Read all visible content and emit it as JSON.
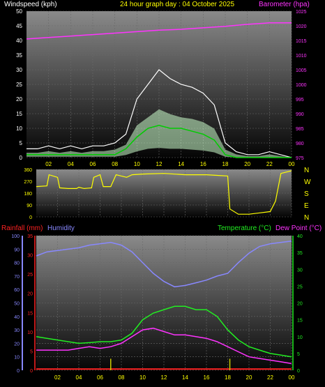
{
  "colors": {
    "background": "#000000",
    "wind_label": "#ffffff",
    "title": "#ffff00",
    "barometer": "#ff33ff",
    "gust": "#ffffff",
    "wind_avg": "#00cc00",
    "wind_range": "#ccffcc",
    "direction": "#ffff00",
    "rainfall": "#ff2222",
    "humidity": "#8888ff",
    "temperature": "#22ee22",
    "dewpoint": "#ff33ff",
    "rain_bar": "#cccc00",
    "time_label": "#ffff00"
  },
  "chart_data": [
    {
      "type": "line",
      "title": "24 hour graph day : 04 October 2025",
      "left_axis_label": "Windspeed (kph)",
      "right_axis_label": "Barometer (hpa)",
      "x_ticks": [
        "02",
        "04",
        "06",
        "08",
        "10",
        "12",
        "14",
        "16",
        "18",
        "20",
        "22",
        "00"
      ],
      "y_left_ticks": [
        "0",
        "5",
        "10",
        "15",
        "20",
        "25",
        "30",
        "35",
        "40",
        "45",
        "50"
      ],
      "y_left_range": [
        0,
        50
      ],
      "y_right_ticks": [
        "975",
        "980",
        "985",
        "990",
        "995",
        "1000",
        "1005",
        "1010",
        "1015",
        "1020",
        "1025"
      ],
      "y_right_range": [
        975,
        1025
      ],
      "grid": true,
      "series": [
        {
          "key": "barometer",
          "hours": [
            0,
            2,
            4,
            6,
            8,
            10,
            12,
            14,
            16,
            18,
            20,
            22,
            24
          ],
          "values": [
            1015.5,
            1016,
            1016.5,
            1017,
            1017.5,
            1018,
            1018.5,
            1018.8,
            1019.3,
            1019.8,
            1020.5,
            1021,
            1021
          ]
        },
        {
          "key": "gust",
          "hours": [
            0,
            1,
            2,
            3,
            4,
            5,
            6,
            7,
            8,
            9,
            10,
            11,
            12,
            13,
            14,
            15,
            16,
            17,
            18,
            19,
            20,
            21,
            22,
            23,
            24
          ],
          "values": [
            3,
            3,
            4,
            3,
            4,
            3,
            4,
            4,
            5,
            8,
            20,
            25,
            30,
            27,
            25,
            24,
            22,
            18,
            5,
            2,
            1,
            1,
            2,
            1,
            0
          ]
        },
        {
          "key": "wind_avg",
          "hours": [
            0,
            1,
            2,
            3,
            4,
            5,
            6,
            7,
            8,
            9,
            10,
            11,
            12,
            13,
            14,
            15,
            16,
            17,
            18,
            19,
            20,
            21,
            22,
            23,
            24
          ],
          "values": [
            1,
            1,
            1,
            1,
            1,
            1,
            1,
            1,
            1,
            3,
            7,
            10,
            11,
            10,
            10,
            9,
            8,
            6,
            1,
            0,
            0,
            0,
            0,
            0,
            0
          ]
        }
      ]
    },
    {
      "type": "line",
      "title": "",
      "y_left_ticks": [
        "360",
        "270",
        "180",
        "90",
        "0"
      ],
      "y_left_range": [
        0,
        360
      ],
      "y_right_ticks": [
        "N",
        "W",
        "S",
        "E",
        "N"
      ],
      "series": [
        {
          "key": "direction",
          "hours": [
            0,
            1,
            1.2,
            2,
            2.2,
            3,
            3.8,
            4,
            4.5,
            5.2,
            5.4,
            6,
            6.3,
            7,
            7.5,
            8,
            8.5,
            9,
            10,
            12,
            14,
            16,
            17,
            18,
            18.2,
            19,
            20,
            21,
            22,
            22.5,
            23,
            23.5,
            24
          ],
          "values": [
            230,
            235,
            320,
            300,
            220,
            215,
            215,
            225,
            215,
            220,
            300,
            320,
            230,
            230,
            320,
            310,
            300,
            320,
            325,
            330,
            320,
            320,
            315,
            310,
            60,
            20,
            20,
            30,
            40,
            120,
            330,
            340,
            350
          ]
        }
      ]
    },
    {
      "type": "line",
      "left_axis_label_1": "Rainfall (mm)",
      "left_axis_label_2": "Humidity",
      "right_axis_label_1": "Temperature (°C)",
      "right_axis_label_2": "Dew Point (°C)",
      "x_ticks": [
        "02",
        "04",
        "06",
        "08",
        "10",
        "12",
        "14",
        "16",
        "18",
        "20",
        "22",
        "00"
      ],
      "humidity_ticks": [
        "0",
        "10",
        "20",
        "30",
        "40",
        "50",
        "60",
        "70",
        "80",
        "90",
        "100"
      ],
      "humidity_range": [
        0,
        100
      ],
      "rainfall_ticks": [
        "0",
        "5",
        "10",
        "15",
        "20",
        "25",
        "30",
        "35"
      ],
      "rainfall_range": [
        0,
        35
      ],
      "temperature_ticks": [
        "0",
        "5",
        "10",
        "15",
        "20",
        "25",
        "30",
        "35",
        "40"
      ],
      "temperature_range": [
        0,
        40
      ],
      "grid": true,
      "series": [
        {
          "key": "humidity",
          "hours": [
            0,
            1,
            2,
            3,
            4,
            5,
            6,
            7,
            8,
            9,
            10,
            11,
            12,
            13,
            14,
            15,
            16,
            17,
            18,
            19,
            20,
            21,
            22,
            23,
            24
          ],
          "values": [
            85,
            88,
            89,
            90,
            91,
            93,
            94,
            95,
            93,
            88,
            80,
            72,
            66,
            62,
            63,
            65,
            67,
            70,
            72,
            80,
            87,
            92,
            94,
            95,
            96
          ]
        },
        {
          "key": "temperature",
          "hours": [
            0,
            1,
            2,
            3,
            4,
            5,
            6,
            7,
            8,
            9,
            10,
            11,
            12,
            13,
            14,
            15,
            16,
            17,
            18,
            19,
            20,
            21,
            22,
            23,
            24
          ],
          "values": [
            10,
            9.5,
            9,
            8.5,
            8,
            8.2,
            8.5,
            8.5,
            9,
            11,
            15,
            17,
            18,
            19,
            19,
            18,
            18,
            16,
            12,
            9,
            7,
            6,
            5,
            4.5,
            4
          ]
        },
        {
          "key": "dewpoint",
          "hours": [
            0,
            1,
            2,
            3,
            4,
            5,
            6,
            7,
            8,
            9,
            10,
            11,
            12,
            13,
            14,
            15,
            16,
            17,
            18,
            19,
            20,
            21,
            22,
            23,
            24
          ],
          "values": [
            6,
            6,
            6,
            6,
            6.5,
            7,
            6.5,
            7,
            8,
            10,
            12,
            12.5,
            11.5,
            10.5,
            10.5,
            10,
            9.5,
            8.5,
            7,
            5.5,
            4,
            3.5,
            3,
            2.5,
            2
          ]
        },
        {
          "key": "rainfall",
          "hours": [
            0,
            24
          ],
          "values": [
            0.3,
            0.3
          ]
        },
        {
          "key": "rain_spike",
          "hours": [
            7,
            18.2
          ],
          "values": [
            3,
            3
          ]
        }
      ]
    }
  ]
}
